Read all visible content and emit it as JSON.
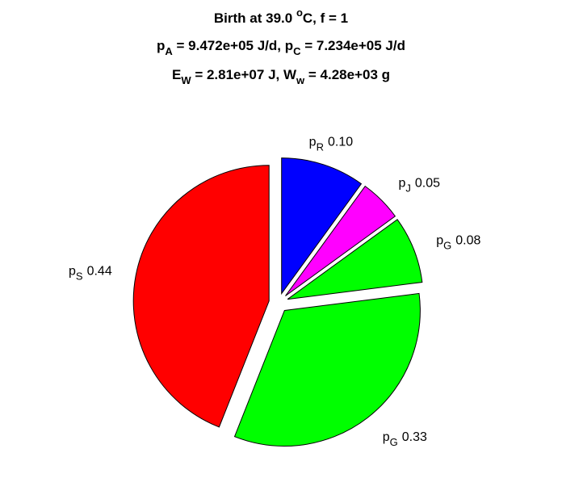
{
  "chart_data": {
    "type": "pie",
    "title": [
      [
        {
          "text": "Birth at 39.0 "
        },
        {
          "text": "o",
          "shift": "sup"
        },
        {
          "text": "C, f = 1"
        }
      ],
      [
        {
          "text": "p"
        },
        {
          "text": "A",
          "shift": "sub"
        },
        {
          "text": " = 9.472e+05 J/d, p"
        },
        {
          "text": "C",
          "shift": "sub"
        },
        {
          "text": " = 7.234e+05 J/d"
        }
      ],
      [
        {
          "text": "E"
        },
        {
          "text": "W",
          "shift": "sub"
        },
        {
          "text": " = 2.81e+07 J, W"
        },
        {
          "text": "w",
          "shift": "sub"
        },
        {
          "text": " = 4.28e+03 g"
        }
      ]
    ],
    "categories": [
      {
        "text": "p",
        "sub": "R"
      },
      {
        "text": "p",
        "sub": "J"
      },
      {
        "text": "p",
        "sub": "G"
      },
      {
        "text": "p",
        "sub": "G"
      },
      {
        "text": "p",
        "sub": "S"
      }
    ],
    "values": [
      0.1,
      0.05,
      0.08,
      0.33,
      0.44
    ],
    "value_labels": [
      "0.10",
      "0.05",
      "0.08",
      "0.33",
      "0.44"
    ],
    "colors": [
      "#0000ff",
      "#ff00ff",
      "#00ff00",
      "#00ff00",
      "#ff0000"
    ],
    "explode": true
  }
}
